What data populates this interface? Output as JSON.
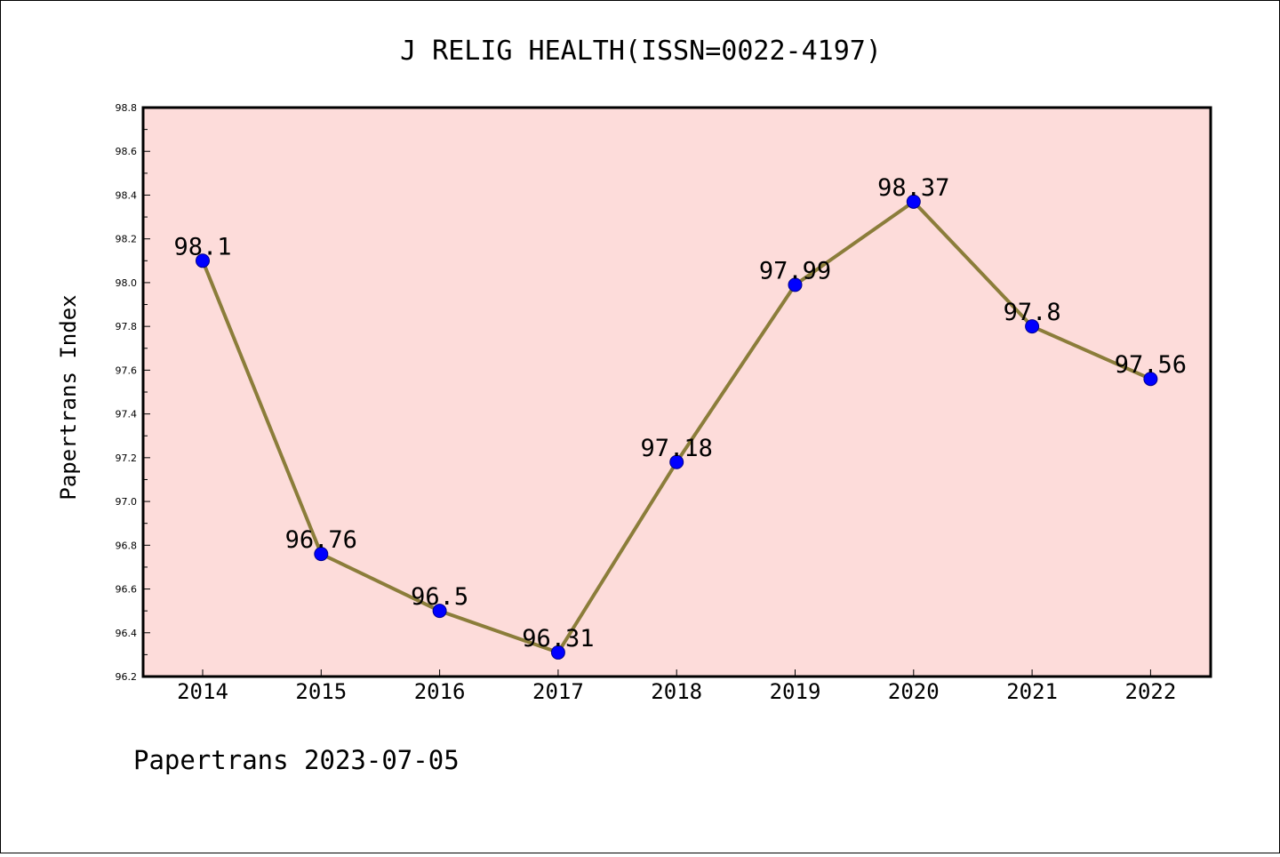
{
  "chart_data": {
    "type": "line",
    "title": "J RELIG HEALTH(ISSN=0022-4197)",
    "ylabel": "Papertrans Index",
    "xlabel": "",
    "categories": [
      "2014",
      "2015",
      "2016",
      "2017",
      "2018",
      "2019",
      "2020",
      "2021",
      "2022"
    ],
    "series": [
      {
        "values": [
          98.1,
          96.76,
          96.5,
          96.31,
          97.18,
          97.99,
          98.37,
          97.8,
          97.56
        ],
        "labels": [
          "98.1",
          "96.76",
          "96.5",
          "96.31",
          "97.18",
          "97.99",
          "98.37",
          "97.8",
          "97.56"
        ],
        "line_color": "#8B7D3A",
        "marker_color": "#0000FF"
      }
    ],
    "ylim": [
      96.2,
      98.8
    ],
    "yticks": [
      "96.2",
      "96.4",
      "96.6",
      "96.8",
      "97.0",
      "97.2",
      "97.4",
      "97.6",
      "97.8",
      "98.0",
      "98.2",
      "98.4",
      "98.6",
      "98.8"
    ],
    "plot_background": "#FDDCDA",
    "grid": false,
    "legend": "none"
  },
  "footer": "Papertrans 2023-07-05"
}
